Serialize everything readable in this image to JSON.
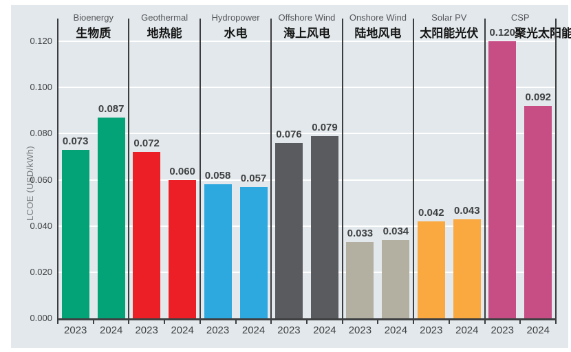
{
  "chart_data": {
    "type": "bar",
    "title": "",
    "ylabel": "LCOE (USD/kWh)",
    "ylim": [
      0,
      0.13
    ],
    "y_tick_labels": [
      "0.000",
      "0.020",
      "0.040",
      "0.060",
      "0.080",
      "0.100",
      "0.120"
    ],
    "grid": true,
    "legend_position": "none",
    "categories": [
      {
        "en": "Bioenergy",
        "zh": "生物质",
        "color": "#04A377"
      },
      {
        "en": "Geothermal",
        "zh": "地热能",
        "color": "#EC1F27"
      },
      {
        "en": "Hydropower",
        "zh": "水电",
        "color": "#2EA9E0"
      },
      {
        "en": "Offshore Wind",
        "zh": "海上风电",
        "color": "#5A5B5E"
      },
      {
        "en": "Onshore Wind",
        "zh": "陆地风电",
        "color": "#B3B0A2"
      },
      {
        "en": "Solar PV",
        "zh": "太阳能光伏",
        "color": "#F9A940"
      },
      {
        "en": "CSP",
        "zh": "聚光太阳能",
        "color": "#C74D85"
      }
    ],
    "series": [
      {
        "name": "2023",
        "values": [
          0.073,
          0.072,
          0.058,
          0.076,
          0.033,
          0.042,
          0.12
        ]
      },
      {
        "name": "2024",
        "values": [
          0.087,
          0.06,
          0.057,
          0.079,
          0.034,
          0.043,
          0.092
        ]
      }
    ],
    "value_label_decimals": 3,
    "colors": {
      "page_background": "#FFFFFF",
      "plot_background": "#E2E8EB",
      "gridline": "#FFFFFF",
      "axis_line": "#3F4042",
      "separator": "#3B3C3E",
      "category_label_en": "#55565A",
      "category_label_zh": "#141414",
      "value_label": "#3F4042",
      "tick_label": "#3F4042",
      "y_axis_title": "#797B7E"
    }
  }
}
